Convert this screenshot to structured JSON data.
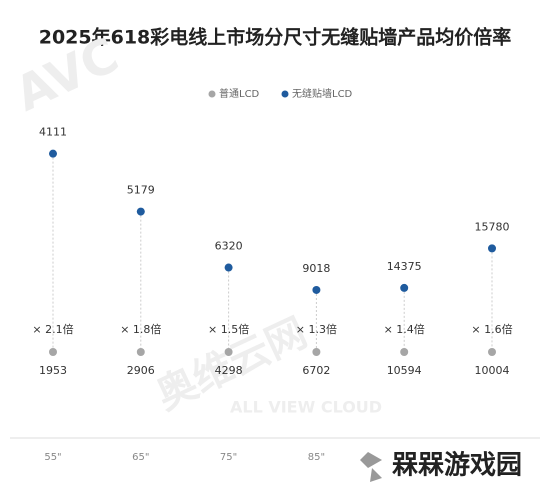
{
  "chart_data": {
    "type": "dot",
    "title": "2025年618彩电线上市场分尺寸无缝贴墙产品均价倍率",
    "categories": [
      "55\"",
      "65\"",
      "75\"",
      "85\"",
      null,
      null
    ],
    "series": [
      {
        "name": "普通LCD",
        "color": "#a6a6a6",
        "values": [
          1953,
          2906,
          4298,
          6702,
          10594,
          10004
        ]
      },
      {
        "name": "无缝贴墙LCD",
        "color": "#1f5b9e",
        "values": [
          4111,
          5179,
          6320,
          9018,
          14375,
          15780
        ]
      }
    ],
    "ratios": {
      "values": [
        2.1,
        1.8,
        1.5,
        1.3,
        1.4,
        1.6
      ],
      "value_labels": [
        "× 2.1倍",
        "× 1.8倍",
        "× 1.5倍",
        "× 1.3倍",
        "× 1.4倍",
        "× 1.6倍"
      ]
    },
    "watermarks": [
      "AVC",
      "奥维云网",
      "ALL VIEW CLOUD"
    ],
    "logo": "槑槑游戏园"
  }
}
